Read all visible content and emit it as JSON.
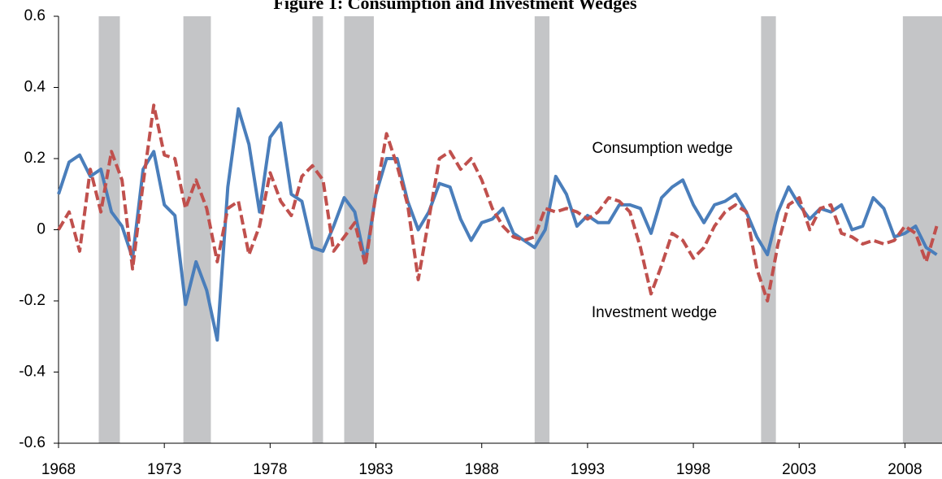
{
  "chart_data": {
    "type": "line",
    "title": "Figure 1: Consumption and Investment Wedges",
    "annotations": [
      "Consumption wedge",
      "Investment wedge"
    ],
    "x": [
      1968,
      1968.5,
      1969,
      1969.5,
      1970,
      1970.5,
      1971,
      1971.5,
      1972,
      1972.5,
      1973,
      1973.5,
      1974,
      1974.5,
      1975,
      1975.5,
      1976,
      1976.5,
      1977,
      1977.5,
      1978,
      1978.5,
      1979,
      1979.5,
      1980,
      1980.5,
      1981,
      1981.5,
      1982,
      1982.5,
      1983,
      1983.5,
      1984,
      1984.5,
      1985,
      1985.5,
      1986,
      1986.5,
      1987,
      1987.5,
      1988,
      1988.5,
      1989,
      1989.5,
      1990,
      1990.5,
      1991,
      1991.5,
      1992,
      1992.5,
      1993,
      1993.5,
      1994,
      1994.5,
      1995,
      1995.5,
      1996,
      1996.5,
      1997,
      1997.5,
      1998,
      1998.5,
      1999,
      1999.5,
      2000,
      2000.5,
      2001,
      2001.5,
      2002,
      2002.5,
      2003,
      2003.5,
      2004,
      2004.5,
      2005,
      2005.5,
      2006,
      2006.5,
      2007,
      2007.5,
      2008,
      2008.5,
      2009,
      2009.5
    ],
    "series": [
      {
        "name": "Consumption wedge",
        "color": "#4a7ebb",
        "dashed": false,
        "values": [
          0.1,
          0.19,
          0.21,
          0.15,
          0.17,
          0.05,
          0.01,
          -0.08,
          0.17,
          0.22,
          0.07,
          0.04,
          -0.21,
          -0.09,
          -0.17,
          -0.31,
          0.12,
          0.34,
          0.24,
          0.05,
          0.26,
          0.3,
          0.1,
          0.08,
          -0.05,
          -0.06,
          0.01,
          0.09,
          0.05,
          -0.09,
          0.1,
          0.2,
          0.2,
          0.08,
          0.0,
          0.05,
          0.13,
          0.12,
          0.03,
          -0.03,
          0.02,
          0.03,
          0.06,
          -0.01,
          -0.03,
          -0.05,
          0.0,
          0.15,
          0.1,
          0.01,
          0.04,
          0.02,
          0.02,
          0.07,
          0.07,
          0.06,
          -0.01,
          0.09,
          0.12,
          0.14,
          0.07,
          0.02,
          0.07,
          0.08,
          0.1,
          0.05,
          -0.02,
          -0.07,
          0.05,
          0.12,
          0.07,
          0.03,
          0.06,
          0.05,
          0.07,
          0.0,
          0.01,
          0.09,
          0.06,
          -0.02,
          -0.01,
          0.01,
          -0.05,
          -0.07
        ]
      },
      {
        "name": "Investment wedge",
        "color": "#c0504d",
        "dashed": true,
        "values": [
          0.0,
          0.05,
          -0.06,
          0.17,
          0.05,
          0.22,
          0.14,
          -0.11,
          0.13,
          0.35,
          0.21,
          0.2,
          0.06,
          0.14,
          0.06,
          -0.09,
          0.06,
          0.08,
          -0.07,
          0.01,
          0.16,
          0.08,
          0.04,
          0.15,
          0.18,
          0.14,
          -0.06,
          -0.02,
          0.02,
          -0.1,
          0.1,
          0.27,
          0.18,
          0.07,
          -0.14,
          0.03,
          0.2,
          0.22,
          0.17,
          0.2,
          0.14,
          0.06,
          0.01,
          -0.02,
          -0.03,
          -0.02,
          0.06,
          0.05,
          0.06,
          0.05,
          0.03,
          0.05,
          0.09,
          0.08,
          0.05,
          -0.05,
          -0.18,
          -0.1,
          -0.01,
          -0.03,
          -0.08,
          -0.05,
          0.01,
          0.05,
          0.07,
          0.05,
          -0.11,
          -0.2,
          -0.04,
          0.07,
          0.09,
          0.0,
          0.06,
          0.07,
          -0.01,
          -0.02,
          -0.04,
          -0.03,
          -0.04,
          -0.03,
          0.01,
          -0.01,
          -0.09,
          0.01
        ]
      }
    ],
    "recessions": [
      [
        1969.9,
        1970.9
      ],
      [
        1973.9,
        1975.2
      ],
      [
        1980.0,
        1980.5
      ],
      [
        1981.5,
        1982.9
      ],
      [
        1990.5,
        1991.2
      ],
      [
        2001.2,
        2001.9
      ],
      [
        2007.9,
        2009.75
      ]
    ],
    "recession_color": "#c4c5c7",
    "xlim": [
      1968,
      2009.75
    ],
    "xticks": [
      1968,
      1973,
      1978,
      1983,
      1988,
      1993,
      1998,
      2003,
      2008
    ],
    "ylim": [
      -0.6,
      0.6
    ],
    "yticks": [
      -0.6,
      -0.4,
      -0.2,
      0,
      0.2,
      0.4,
      0.6
    ],
    "grid": false
  }
}
